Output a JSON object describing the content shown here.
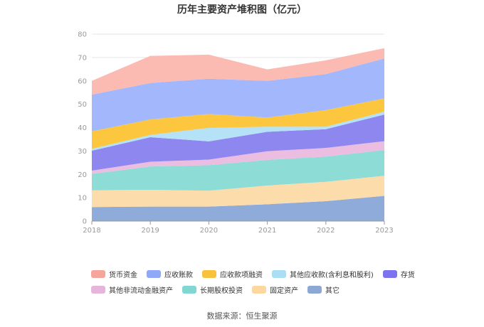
{
  "chart_data": {
    "type": "area",
    "stacked": true,
    "title": "历年主要资产堆积图（亿元）",
    "x": [
      "2018",
      "2019",
      "2020",
      "2021",
      "2022",
      "2023"
    ],
    "ylim": [
      0,
      80
    ],
    "yticks": [
      "0",
      "10",
      "20",
      "30",
      "40",
      "50",
      "60",
      "70",
      "80"
    ],
    "grid": true,
    "legend_position": "bottom",
    "series": [
      {
        "name": "其它",
        "color": "#8fabd9",
        "values": [
          6.0,
          6.2,
          6.2,
          7.2,
          8.5,
          10.8
        ]
      },
      {
        "name": "固定资产",
        "color": "#fcdcaa",
        "values": [
          7.2,
          7.2,
          6.8,
          8.0,
          8.3,
          8.6
        ]
      },
      {
        "name": "长期股权投资",
        "color": "#8edcd6",
        "values": [
          7.0,
          10.0,
          10.9,
          11.0,
          10.8,
          11.0
        ]
      },
      {
        "name": "其他非流动金融资产",
        "color": "#ebbde0",
        "values": [
          1.4,
          2.0,
          2.4,
          3.7,
          3.7,
          3.8
        ]
      },
      {
        "name": "存货",
        "color": "#8d87ef",
        "values": [
          8.5,
          10.5,
          7.8,
          8.3,
          8.0,
          11.4
        ]
      },
      {
        "name": "其他应收款(含利息和股利)",
        "color": "#b5e2f6",
        "values": [
          0.8,
          1.0,
          5.8,
          2.2,
          1.1,
          1.2
        ]
      },
      {
        "name": "应收款项融资",
        "color": "#fcc63f",
        "values": [
          7.5,
          6.6,
          5.9,
          3.9,
          7.1,
          5.7
        ]
      },
      {
        "name": "应收账款",
        "color": "#a3b8fc",
        "values": [
          15.7,
          15.6,
          15.1,
          15.7,
          15.4,
          17.1
        ]
      },
      {
        "name": "货币资金",
        "color": "#fbbab2",
        "values": [
          5.9,
          11.6,
          10.3,
          4.9,
          5.9,
          4.4
        ]
      }
    ],
    "legend": [
      {
        "name": "货币资金",
        "color": "#f5a59a"
      },
      {
        "name": "应收账款",
        "color": "#8ea9f7"
      },
      {
        "name": "应收款项融资",
        "color": "#f9c23c"
      },
      {
        "name": "其他应收款(含利息和股利)",
        "color": "#a9def5"
      },
      {
        "name": "存货",
        "color": "#7b74ee"
      },
      {
        "name": "其他非流动金融资产",
        "color": "#e6b5dc"
      },
      {
        "name": "长期股权投资",
        "color": "#83d7d2"
      },
      {
        "name": "固定资产",
        "color": "#fcd7a0"
      },
      {
        "name": "其它",
        "color": "#8ea8d6"
      }
    ]
  },
  "source": "数据来源：恒生聚源"
}
